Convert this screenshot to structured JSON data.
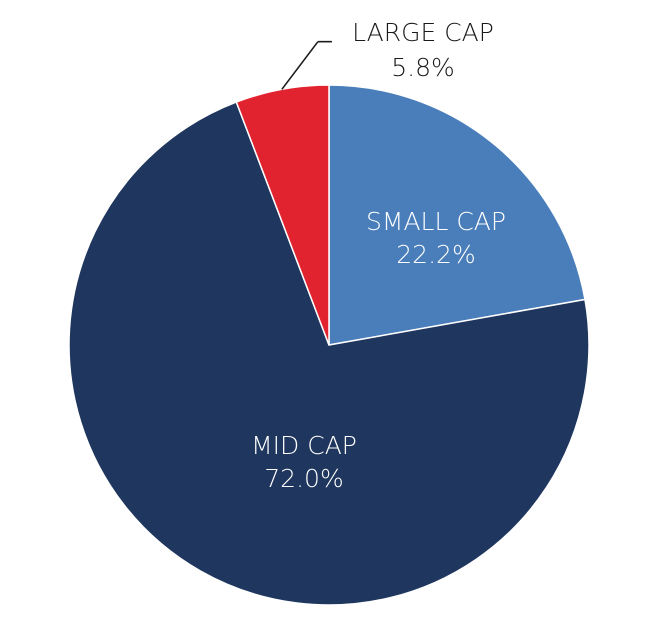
{
  "chart_data": {
    "type": "pie",
    "title": "",
    "slices": [
      {
        "label": "SMALL CAP",
        "value": 22.2,
        "value_text": "22.2%",
        "color": "#4a7ebb",
        "label_placement": "inside"
      },
      {
        "label": "MID CAP",
        "value": 72.0,
        "value_text": "72.0%",
        "color": "#1f365e",
        "label_placement": "inside"
      },
      {
        "label": "LARGE CAP",
        "value": 5.8,
        "value_text": "5.8%",
        "color": "#e0232e",
        "label_placement": "outside-leader"
      }
    ],
    "start_angle_deg": 0,
    "direction": "clockwise",
    "legend": "none"
  }
}
